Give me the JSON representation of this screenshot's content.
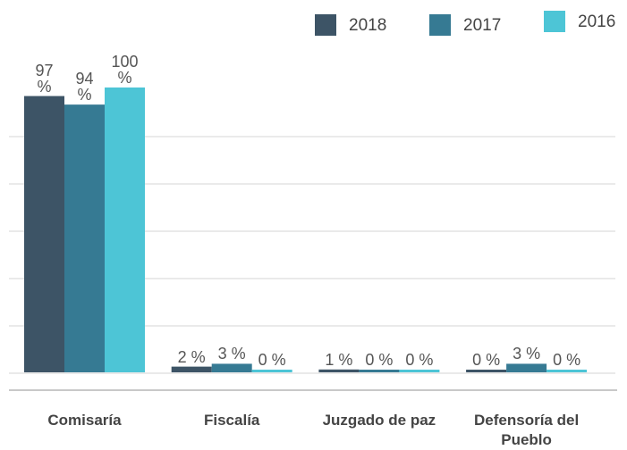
{
  "chart_data": {
    "type": "bar",
    "categories": [
      "Comisaría",
      "Fiscalía",
      "Juzgado de paz",
      "Defensoría del Pueblo"
    ],
    "series": [
      {
        "name": "2018",
        "color": "#3d5466",
        "values": [
          97,
          2,
          1,
          0
        ],
        "value_labels": [
          "97 %",
          "2 %",
          "1 %",
          "0 %"
        ]
      },
      {
        "name": "2017",
        "color": "#367a93",
        "values": [
          94,
          3,
          0,
          3
        ],
        "value_labels": [
          "94 %",
          "3 %",
          "0 %",
          "3 %"
        ]
      },
      {
        "name": "2016",
        "color": "#4dc5d6",
        "values": [
          100,
          0,
          0,
          0
        ],
        "value_labels": [
          "100 %",
          "0 %",
          "0 %",
          "0 %"
        ]
      }
    ],
    "ylim": [
      0,
      100
    ]
  }
}
